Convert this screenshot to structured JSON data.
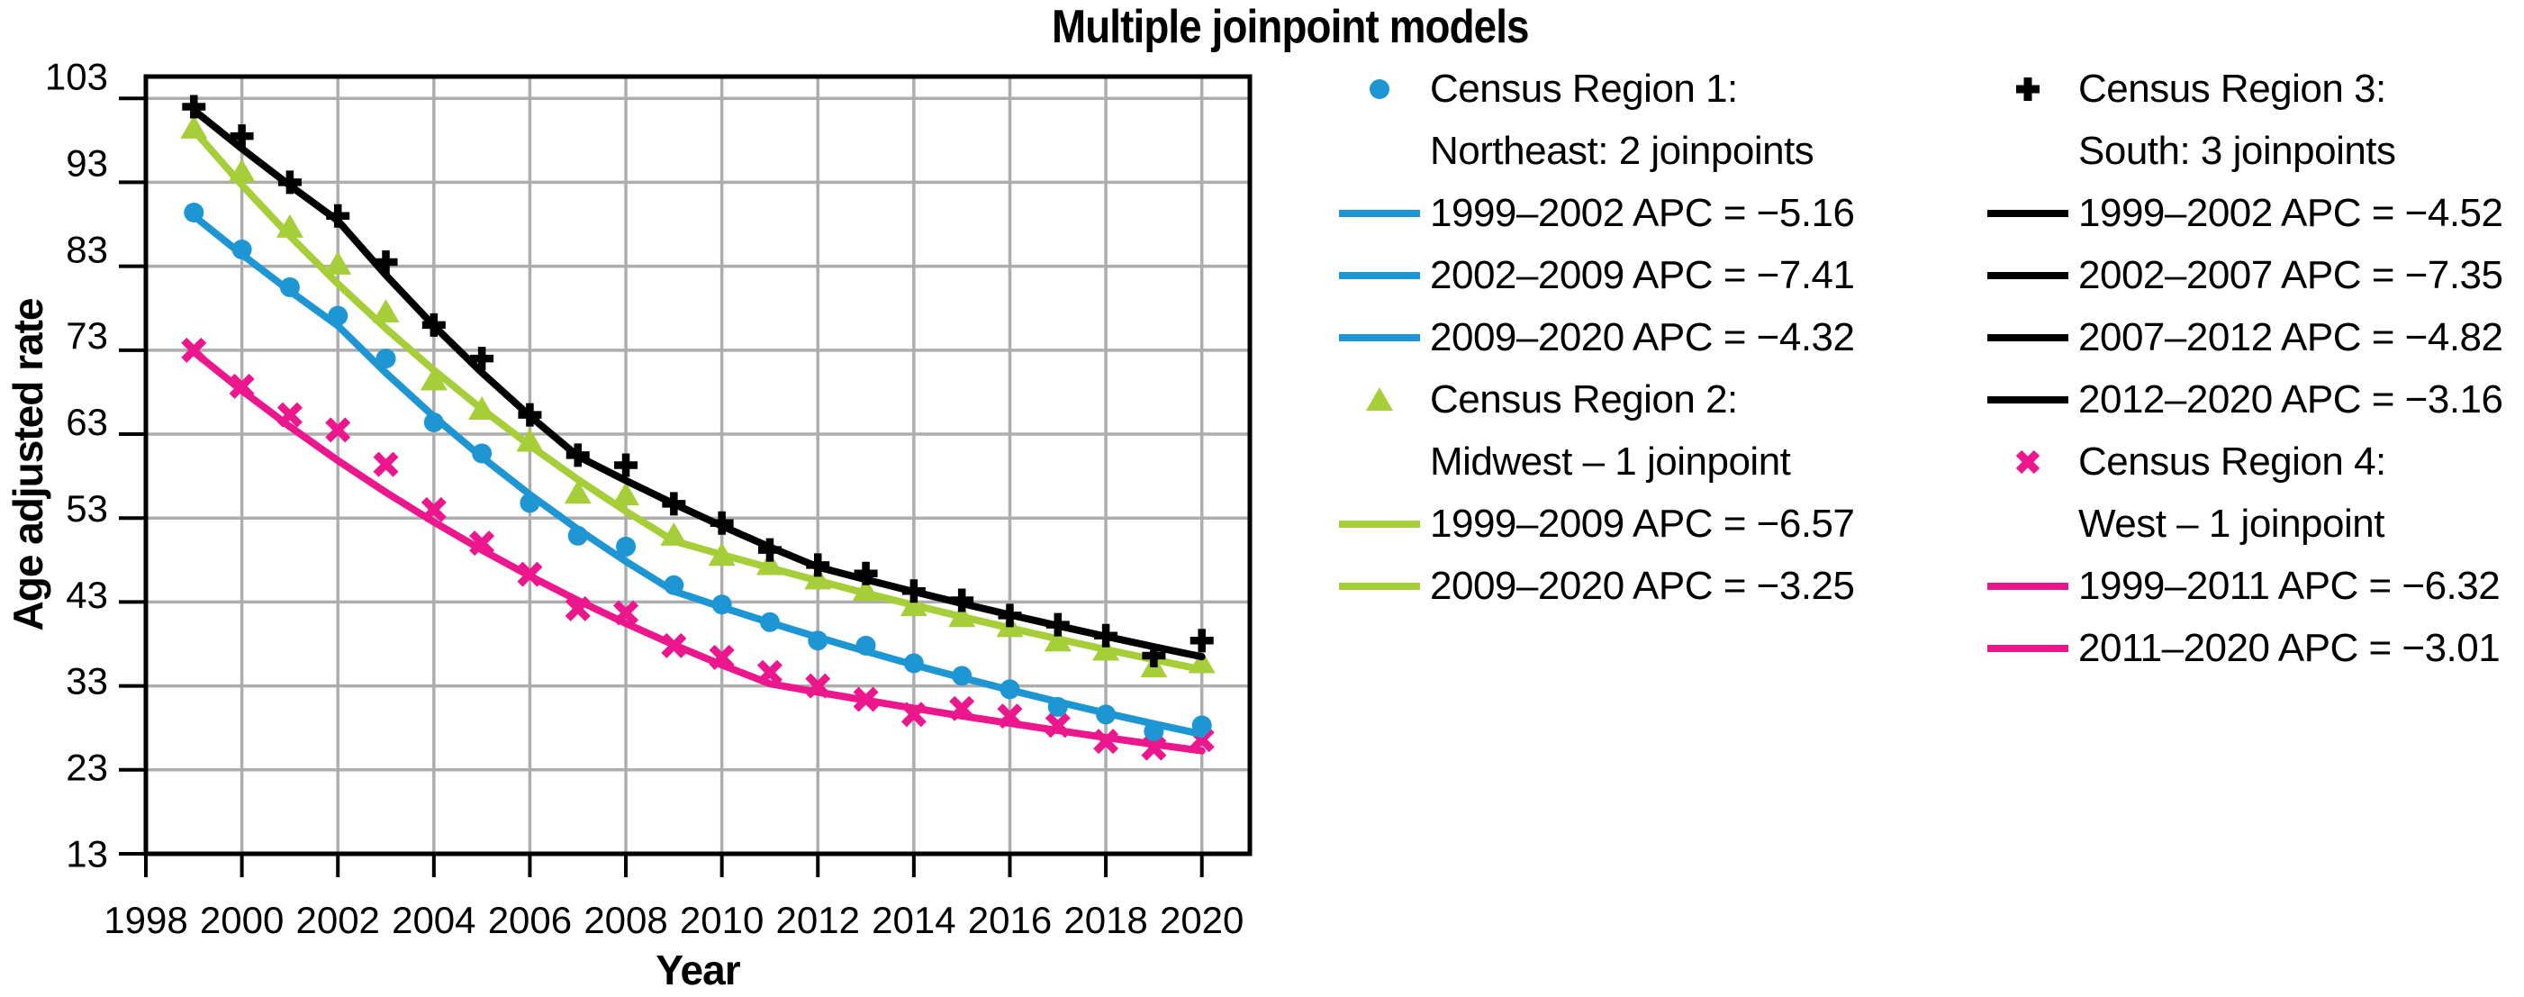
{
  "title": "Multiple joinpoint models",
  "colors": {
    "region1": "#1E96D4",
    "region2": "#A6CE38",
    "region3": "#000000",
    "region4": "#EC168D",
    "grid": "#ADADAD",
    "axis": "#000000"
  },
  "chart_data": {
    "type": "line",
    "title": "Multiple joinpoint models",
    "xlabel": "Year",
    "ylabel": "Age adjusted rate",
    "x": [
      1999,
      2000,
      2001,
      2002,
      2003,
      2004,
      2005,
      2006,
      2007,
      2008,
      2009,
      2010,
      2011,
      2012,
      2013,
      2014,
      2015,
      2016,
      2017,
      2018,
      2019,
      2020
    ],
    "x_ticks": [
      1998,
      2000,
      2002,
      2004,
      2006,
      2008,
      2010,
      2012,
      2014,
      2016,
      2018,
      2020
    ],
    "y_ticks": [
      13,
      23,
      33,
      43,
      53,
      63,
      73,
      83,
      93,
      103
    ],
    "xlim": [
      1998,
      2021
    ],
    "ylim": [
      13,
      105.6
    ],
    "grid": true,
    "legend_position": "right",
    "series": [
      {
        "id": "region1",
        "name": "Census Region 1: Northeast: 2 joinpoints",
        "marker": "circle",
        "color": "#1E96D4",
        "observed": [
          89.4,
          85.0,
          80.5,
          77.1,
          72.0,
          64.4,
          60.7,
          54.8,
          50.9,
          49.6,
          45.0,
          42.7,
          40.6,
          38.4,
          37.8,
          35.7,
          34.2,
          32.6,
          30.5,
          29.6,
          27.6,
          28.3
        ],
        "fit": {
          "start_year": 1999,
          "start_value": 89.0,
          "segments": [
            {
              "to": 2002,
              "apc": -5.16
            },
            {
              "to": 2009,
              "apc": -7.41
            },
            {
              "to": 2020,
              "apc": -4.32
            }
          ]
        }
      },
      {
        "id": "region2",
        "name": "Census Region 2: Midwest – 1 joinpoint",
        "marker": "triangle",
        "color": "#A6CE38",
        "observed": [
          99.5,
          94.3,
          87.7,
          83.3,
          77.6,
          69.5,
          66.0,
          62.2,
          56.0,
          55.8,
          51.0,
          48.6,
          47.5,
          45.8,
          44.4,
          42.6,
          41.3,
          40.1,
          38.4,
          37.3,
          35.3,
          35.8
        ],
        "fit": {
          "start_year": 1999,
          "start_value": 99.2,
          "segments": [
            {
              "to": 2009,
              "apc": -6.57
            },
            {
              "to": 2020,
              "apc": -3.25
            }
          ]
        }
      },
      {
        "id": "region3",
        "name": "Census Region 3: South: 3 joinpoints",
        "marker": "plus",
        "color": "#000000",
        "observed": [
          102.0,
          98.5,
          93.0,
          89.0,
          83.5,
          76.0,
          72.0,
          65.3,
          60.5,
          59.3,
          54.7,
          52.4,
          49.2,
          47.4,
          46.4,
          44.3,
          43.2,
          41.4,
          40.3,
          39.0,
          36.6,
          38.4
        ],
        "fit": {
          "start_year": 1999,
          "start_value": 101.6,
          "segments": [
            {
              "to": 2002,
              "apc": -4.52
            },
            {
              "to": 2007,
              "apc": -7.35
            },
            {
              "to": 2012,
              "apc": -4.82
            },
            {
              "to": 2020,
              "apc": -3.16
            }
          ]
        }
      },
      {
        "id": "region4",
        "name": "Census Region 4: West – 1 joinpoint",
        "marker": "x",
        "color": "#EC168D",
        "observed": [
          73.0,
          68.7,
          65.3,
          63.5,
          59.4,
          54.0,
          50.0,
          46.3,
          42.2,
          41.7,
          37.8,
          36.4,
          34.6,
          33.0,
          31.4,
          29.6,
          30.3,
          29.4,
          28.3,
          26.4,
          25.6,
          26.6
        ],
        "fit": {
          "start_year": 1999,
          "start_value": 72.8,
          "segments": [
            {
              "to": 2011,
              "apc": -6.32
            },
            {
              "to": 2020,
              "apc": -3.01
            }
          ]
        }
      }
    ]
  },
  "legend": {
    "columns": [
      {
        "rows": [
          {
            "marker": "circle",
            "series": "region1",
            "label": "Census Region 1:"
          },
          {
            "marker": null,
            "series": "region1",
            "label": "Northeast: 2 joinpoints"
          },
          {
            "marker": "line",
            "series": "region1",
            "label": "1999–2002 APC = −5.16"
          },
          {
            "marker": "line",
            "series": "region1",
            "label": "2002–2009 APC = −7.41"
          },
          {
            "marker": "line",
            "series": "region1",
            "label": "2009–2020 APC = −4.32"
          },
          {
            "marker": "triangle",
            "series": "region2",
            "label": "Census Region 2:"
          },
          {
            "marker": null,
            "series": "region2",
            "label": "Midwest – 1 joinpoint"
          },
          {
            "marker": "line",
            "series": "region2",
            "label": "1999–2009 APC = −6.57"
          },
          {
            "marker": "line",
            "series": "region2",
            "label": "2009–2020 APC = −3.25"
          }
        ]
      },
      {
        "rows": [
          {
            "marker": "plus",
            "series": "region3",
            "label": "Census Region 3:"
          },
          {
            "marker": null,
            "series": "region3",
            "label": "South: 3 joinpoints"
          },
          {
            "marker": "line",
            "series": "region3",
            "label": "1999–2002 APC = −4.52"
          },
          {
            "marker": "line",
            "series": "region3",
            "label": "2002–2007 APC = −7.35"
          },
          {
            "marker": "line",
            "series": "region3",
            "label": "2007–2012 APC = −4.82"
          },
          {
            "marker": "line",
            "series": "region3",
            "label": "2012–2020 APC = −3.16"
          },
          {
            "marker": "x",
            "series": "region4",
            "label": "Census Region 4:"
          },
          {
            "marker": null,
            "series": "region4",
            "label": "West – 1 joinpoint"
          },
          {
            "marker": "line",
            "series": "region4",
            "label": "1999–2011 APC = −6.32"
          },
          {
            "marker": "line",
            "series": "region4",
            "label": "2011–2020 APC = −3.01"
          }
        ]
      }
    ]
  }
}
